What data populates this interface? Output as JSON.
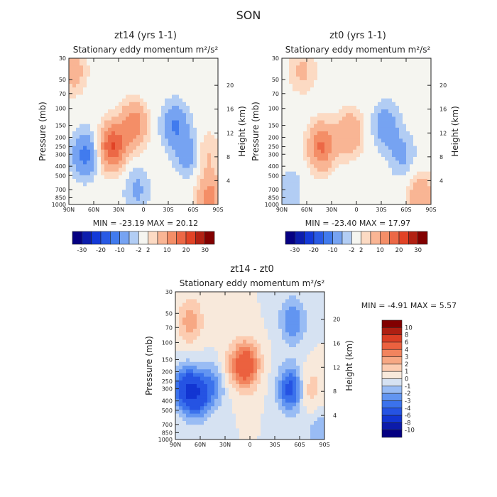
{
  "figure_title": "SON",
  "chart_data": [
    {
      "type": "heatmap",
      "panel": "zt14",
      "title": "zt14 (yrs 1-1)",
      "subtitle": "Stationary eddy momentum",
      "units": "m²/s²",
      "xlabel": "",
      "ylabel": "Pressure (mb)",
      "y2label": "Height (km)",
      "x_ticks": [
        "90N",
        "60N",
        "30N",
        "0",
        "30S",
        "60S",
        "90S"
      ],
      "y_ticks": [
        "30",
        "50",
        "70",
        "100",
        "150",
        "200",
        "250",
        "300",
        "400",
        "500",
        "700",
        "850",
        "1000"
      ],
      "y2_ticks": [
        "4",
        "8",
        "12",
        "16",
        "20"
      ],
      "xlim": [
        90,
        -90
      ],
      "ylim": [
        1000,
        30
      ],
      "stats": "MIN = -23.19   MAX = 20.12",
      "min": -23.19,
      "max": 20.12,
      "colorbar_labels": [
        "-30",
        "-20",
        "-10",
        "-2",
        "2",
        "10",
        "20",
        "30"
      ],
      "colorbar_levels": [
        -35,
        -30,
        -25,
        -20,
        -15,
        -10,
        -5,
        -2,
        2,
        5,
        10,
        15,
        20,
        25,
        30,
        35
      ],
      "features": [
        {
          "lat": 85,
          "p": 40,
          "value": 8
        },
        {
          "lat": 38,
          "p": 250,
          "value": 20
        },
        {
          "lat": 12,
          "p": 150,
          "value": 14
        },
        {
          "lat": 70,
          "p": 300,
          "value": -12
        },
        {
          "lat": 8,
          "p": 700,
          "value": -6
        },
        {
          "lat": -38,
          "p": 150,
          "value": -10
        },
        {
          "lat": -55,
          "p": 300,
          "value": -8
        },
        {
          "lat": -75,
          "p": 300,
          "value": 6
        },
        {
          "lat": -80,
          "p": 850,
          "value": 12
        }
      ]
    },
    {
      "type": "heatmap",
      "panel": "zt0",
      "title": "zt0 (yrs 1-1)",
      "subtitle": "Stationary eddy momentum",
      "units": "m²/s²",
      "xlabel": "",
      "ylabel": "Pressure (mb)",
      "y2label": "Height (km)",
      "x_ticks": [
        "90N",
        "60N",
        "30N",
        "0",
        "30S",
        "60S",
        "90S"
      ],
      "y_ticks": [
        "30",
        "50",
        "70",
        "100",
        "150",
        "200",
        "250",
        "300",
        "400",
        "500",
        "700",
        "850",
        "1000"
      ],
      "y2_ticks": [
        "4",
        "8",
        "12",
        "16",
        "20"
      ],
      "xlim": [
        90,
        -90
      ],
      "ylim": [
        1000,
        30
      ],
      "stats": "MIN = -23.40   MAX = 17.97",
      "min": -23.4,
      "max": 17.97,
      "colorbar_labels": [
        "-30",
        "-20",
        "-10",
        "-2",
        "2",
        "10",
        "20",
        "30"
      ],
      "colorbar_levels": [
        -35,
        -30,
        -25,
        -20,
        -15,
        -10,
        -5,
        -2,
        2,
        5,
        10,
        15,
        20,
        25,
        30,
        35
      ],
      "features": [
        {
          "lat": 65,
          "p": 40,
          "value": 6
        },
        {
          "lat": 42,
          "p": 250,
          "value": 16
        },
        {
          "lat": 8,
          "p": 180,
          "value": 10
        },
        {
          "lat": -35,
          "p": 150,
          "value": -8
        },
        {
          "lat": -55,
          "p": 300,
          "value": -6
        },
        {
          "lat": 80,
          "p": 700,
          "value": -4
        },
        {
          "lat": -78,
          "p": 850,
          "value": 10
        }
      ]
    },
    {
      "type": "heatmap",
      "panel": "diff",
      "title": "zt14 - zt0",
      "subtitle": "Stationary eddy momentum",
      "units": "m²/s²",
      "xlabel": "",
      "ylabel": "Pressure (mb)",
      "y2label": "Height (km)",
      "x_ticks": [
        "90N",
        "60N",
        "30N",
        "0",
        "30S",
        "60S",
        "90S"
      ],
      "y_ticks": [
        "30",
        "50",
        "70",
        "100",
        "150",
        "200",
        "250",
        "300",
        "400",
        "500",
        "700",
        "850",
        "1000"
      ],
      "y2_ticks": [
        "4",
        "8",
        "12",
        "16",
        "20"
      ],
      "xlim": [
        90,
        -90
      ],
      "ylim": [
        1000,
        30
      ],
      "stats": "MIN =   -4.91   MAX =   5.57",
      "min": -4.91,
      "max": 5.57,
      "colorbar_labels": [
        "10",
        "8",
        "6",
        "4",
        "3",
        "2",
        "1",
        "0",
        "-1",
        "-2",
        "-3",
        "-4",
        "-6",
        "-8",
        "-10"
      ],
      "colorbar_levels": [
        -12,
        -10,
        -8,
        -6,
        -4,
        -3,
        -2,
        -1,
        0,
        1,
        2,
        3,
        4,
        6,
        8,
        10,
        12
      ],
      "features": [
        {
          "lat": 78,
          "p": 300,
          "value": -4.5
        },
        {
          "lat": 62,
          "p": 350,
          "value": -4.2
        },
        {
          "lat": 40,
          "p": 250,
          "value": -3
        },
        {
          "lat": 5,
          "p": 170,
          "value": 5.5
        },
        {
          "lat": 72,
          "p": 60,
          "value": 2.5
        },
        {
          "lat": 30,
          "p": 200,
          "value": 2
        },
        {
          "lat": -50,
          "p": 300,
          "value": -4.9
        },
        {
          "lat": -52,
          "p": 60,
          "value": -3
        },
        {
          "lat": -70,
          "p": 300,
          "value": 2
        },
        {
          "lat": -85,
          "p": 900,
          "value": -2
        }
      ]
    }
  ]
}
